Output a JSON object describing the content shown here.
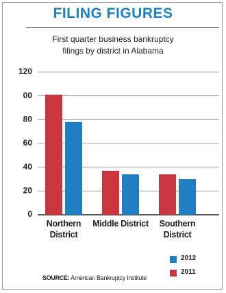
{
  "chart_data": {
    "type": "bar",
    "title": "FILING FIGURES",
    "subtitle": [
      "First quarter business bankruptcy",
      "filings by district in Alabama"
    ],
    "categories": [
      "Northern District",
      "Middle District",
      "Southern District"
    ],
    "series": [
      {
        "name": "2011",
        "color": "#c8363f",
        "values": [
          101,
          37,
          34
        ]
      },
      {
        "name": "2012",
        "color": "#1f7fc2",
        "values": [
          78,
          34,
          30
        ]
      }
    ],
    "ylim": [
      0,
      120
    ],
    "yticks": [
      0,
      20,
      40,
      60,
      80,
      {
        "value": 100,
        "label": "00"
      },
      120
    ],
    "grid": true,
    "source_label": "SOURCE:",
    "source": "American Bankruptcy Institute"
  }
}
